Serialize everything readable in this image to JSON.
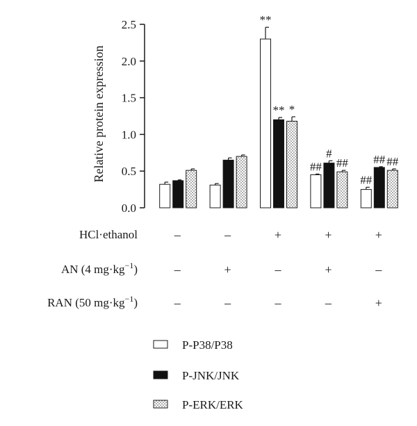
{
  "chart_data": {
    "type": "bar",
    "ylabel": "Relative protein expression",
    "ylim": [
      0,
      2.5
    ],
    "yticks": [
      "0.0",
      "0.5",
      "1.0",
      "1.5",
      "2.0",
      "2.5"
    ],
    "groups": 5,
    "series": [
      {
        "name": "P-P38/P38",
        "style": "white",
        "values": [
          0.32,
          0.31,
          2.3,
          0.45,
          0.25
        ],
        "errors": [
          0.03,
          0.02,
          0.16,
          0.01,
          0.03
        ]
      },
      {
        "name": "P-JNK/JNK",
        "style": "black",
        "values": [
          0.37,
          0.65,
          1.2,
          0.61,
          0.55
        ],
        "errors": [
          0.01,
          0.03,
          0.03,
          0.03,
          0.01
        ]
      },
      {
        "name": "P-ERK/ERK",
        "style": "dotted",
        "values": [
          0.51,
          0.7,
          1.18,
          0.49,
          0.51
        ],
        "errors": [
          0.02,
          0.02,
          0.06,
          0.02,
          0.02
        ]
      }
    ],
    "significance": [
      {
        "group": 2,
        "series": 0,
        "text": "**"
      },
      {
        "group": 2,
        "series": 1,
        "text": "**"
      },
      {
        "group": 2,
        "series": 2,
        "text": "*"
      },
      {
        "group": 3,
        "series": 0,
        "text": "##"
      },
      {
        "group": 3,
        "series": 1,
        "text": "#"
      },
      {
        "group": 3,
        "series": 2,
        "text": "##"
      },
      {
        "group": 4,
        "series": 0,
        "text": "##"
      },
      {
        "group": 4,
        "series": 1,
        "text": "##"
      },
      {
        "group": 4,
        "series": 2,
        "text": "##"
      }
    ],
    "treatment_rows": [
      {
        "label": "HCl·ethanol",
        "values": [
          "–",
          "–",
          "+",
          "+",
          "+"
        ]
      },
      {
        "label": "AN (4 mg·kg",
        "sup": "−1",
        "close": ")",
        "values": [
          "–",
          "+",
          "–",
          "+",
          "–"
        ]
      },
      {
        "label": "RAN (50 mg·kg",
        "sup": "−1",
        "close": ")",
        "values": [
          "–",
          "–",
          "–",
          "–",
          "+"
        ]
      }
    ],
    "grid": false,
    "legend_position": "bottom"
  },
  "colors": {
    "axis": "#1a1a1a",
    "white_fill": "#ffffff",
    "black_fill": "#111111",
    "dot": "#444444"
  }
}
